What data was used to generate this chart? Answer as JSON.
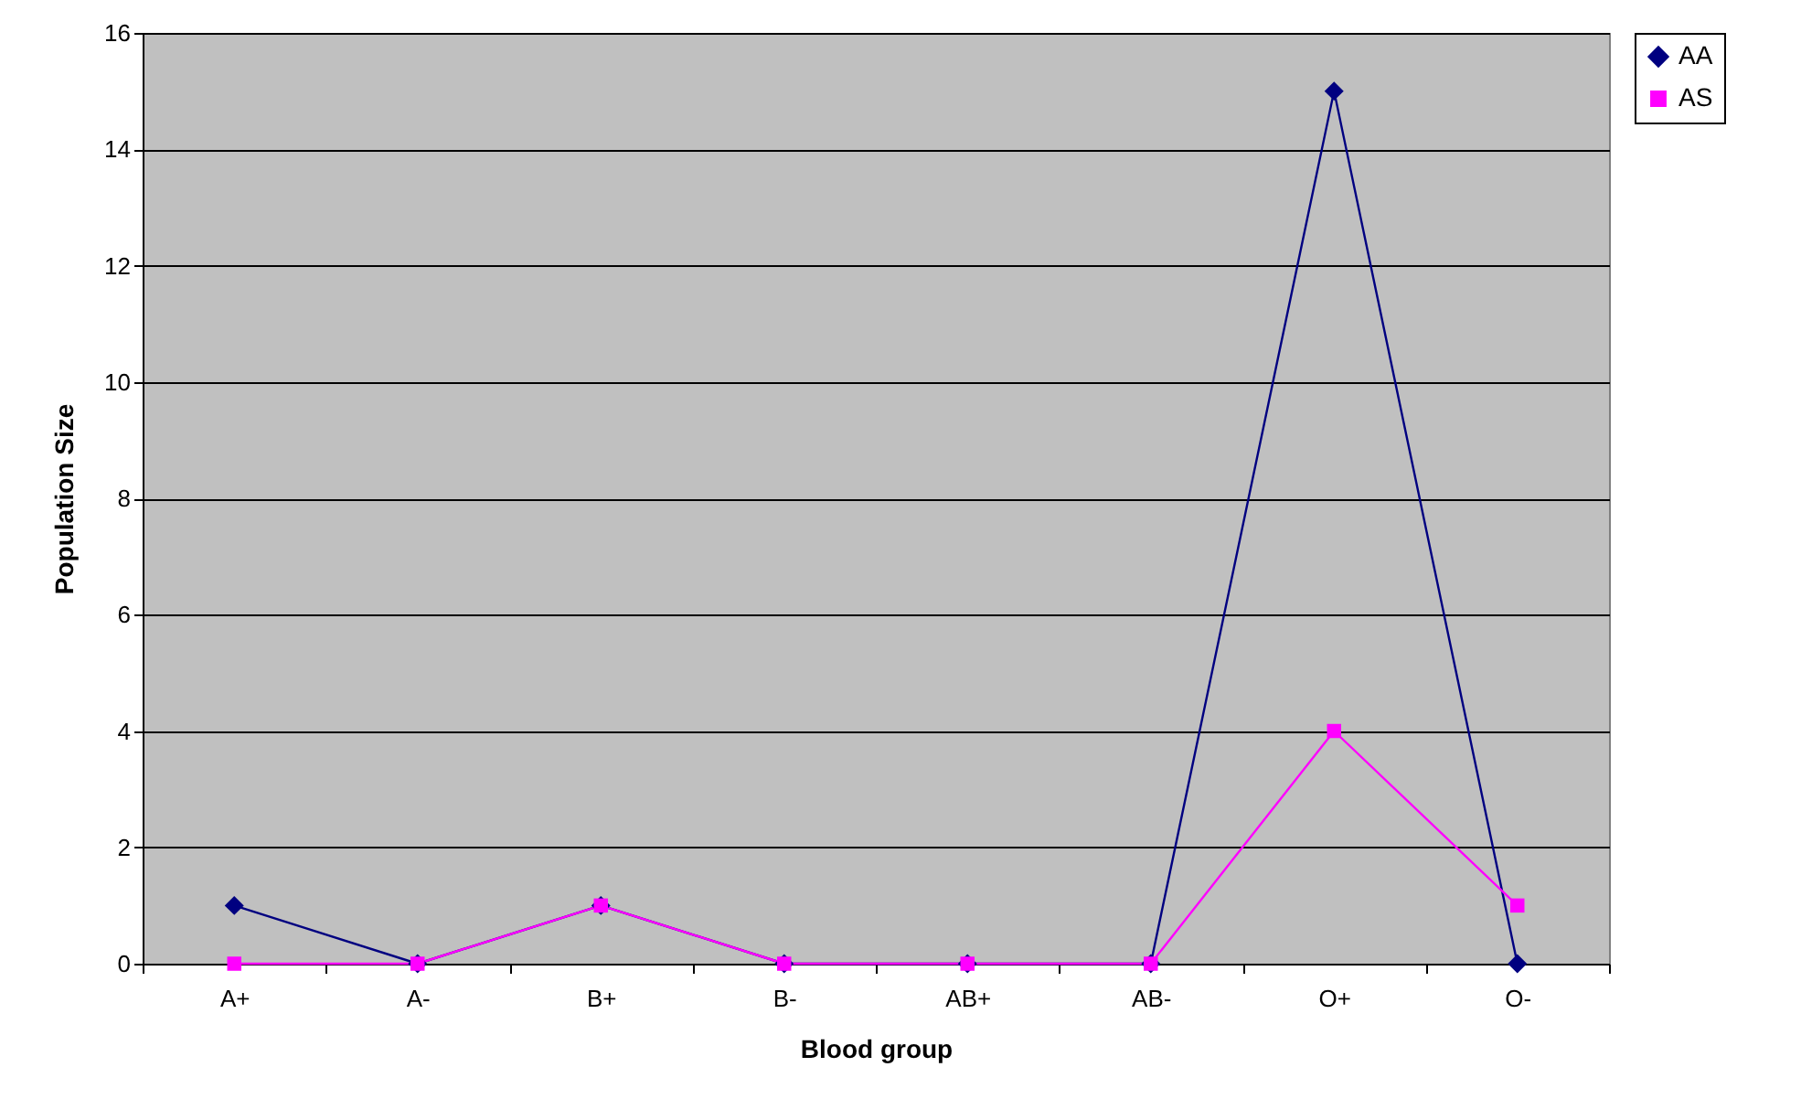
{
  "chart_data": {
    "type": "line",
    "xlabel": "Blood group",
    "ylabel": "Population Size",
    "categories": [
      "A+",
      "A-",
      "B+",
      "B-",
      "AB+",
      "AB-",
      "O+",
      "O-"
    ],
    "series": [
      {
        "name": "AA",
        "color": "#000080",
        "marker": "diamond",
        "values": [
          1,
          0,
          1,
          0,
          0,
          0,
          15,
          0
        ]
      },
      {
        "name": "AS",
        "color": "#ff00ff",
        "marker": "square",
        "values": [
          0,
          0,
          1,
          0,
          0,
          0,
          4,
          1
        ]
      }
    ],
    "ylim": [
      0,
      16
    ],
    "yticks": [
      0,
      2,
      4,
      6,
      8,
      10,
      12,
      14,
      16
    ],
    "grid": "y",
    "legend": "right"
  }
}
